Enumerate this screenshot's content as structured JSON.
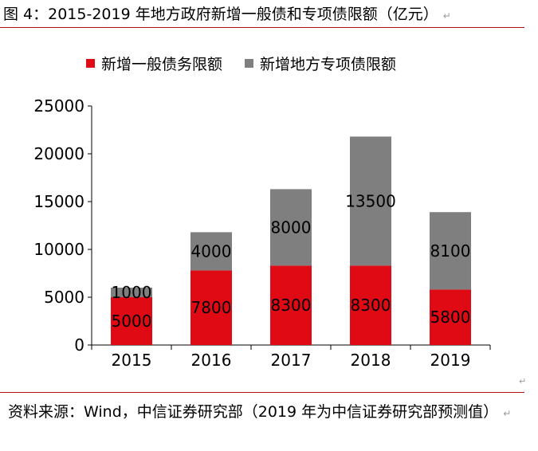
{
  "figure": {
    "title": "图 4：2015-2019 年地方政府新增一般债和专项债限额（亿元）",
    "source": "资料来源：Wind，中信证券研究部（2019 年为中信证券研究部预测值）",
    "para_mark": "↵",
    "colors": {
      "general": "#e00a14",
      "special": "#7f7f7f",
      "rule": "#b5121b"
    }
  },
  "chart_data": {
    "type": "bar",
    "stacked": true,
    "categories": [
      "2015",
      "2016",
      "2017",
      "2018",
      "2019"
    ],
    "series": [
      {
        "name": "新增一般债务限额",
        "values": [
          5000,
          7800,
          8300,
          8300,
          5800
        ]
      },
      {
        "name": "新增地方专项债限额",
        "values": [
          1000,
          4000,
          8000,
          13500,
          8100
        ]
      }
    ],
    "ylim": [
      0,
      25000
    ],
    "yticks": [
      0,
      5000,
      10000,
      15000,
      20000,
      25000
    ],
    "legend_position": "top",
    "grid": false,
    "xlabel": "",
    "ylabel": ""
  }
}
